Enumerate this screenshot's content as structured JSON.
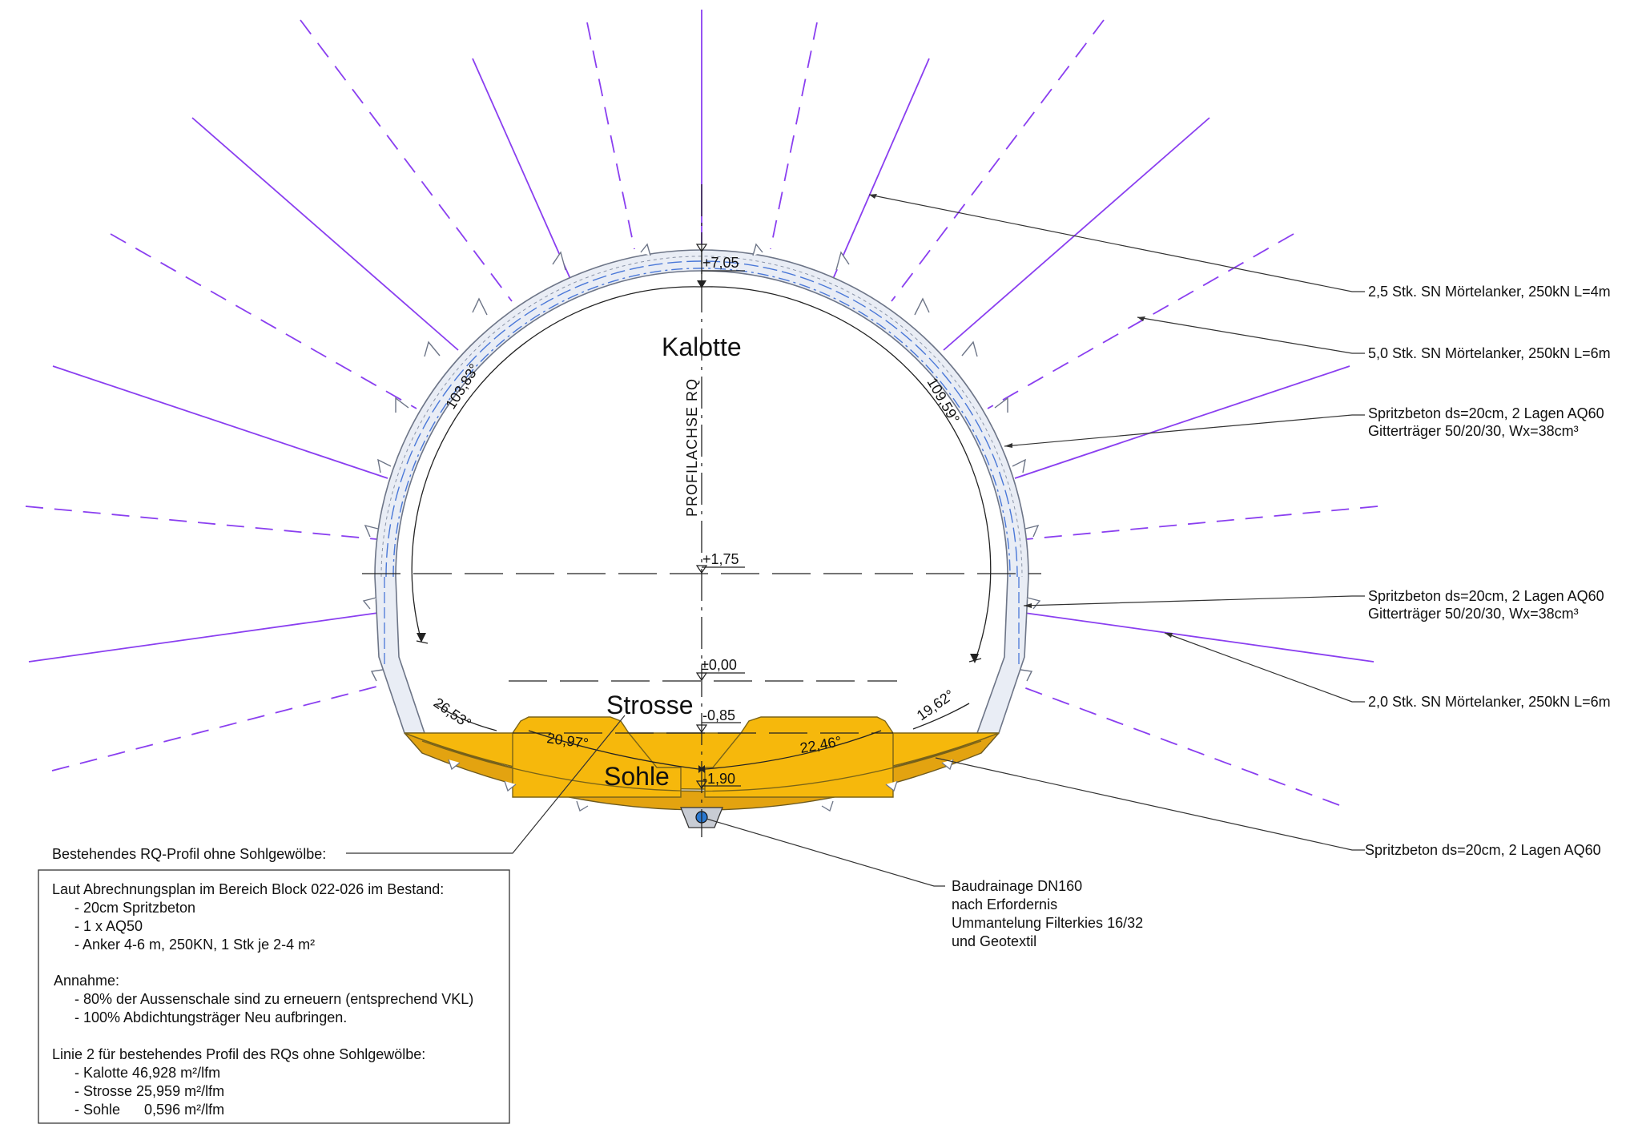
{
  "sections": {
    "kalotte": "Kalotte",
    "strosse": "Strosse",
    "sohle": "Sohle"
  },
  "axis_label": "PROFILACHSE RQ",
  "levels": {
    "top": "+7,05",
    "springline": "+1,75",
    "zero": "±0,00",
    "strosse": "-0,85",
    "sohle": "-1,90"
  },
  "angles": {
    "left_arc": "103,83°",
    "right_arc": "109,59°",
    "left_strosse": "26,53°",
    "right_strosse": "19,62°",
    "left_sohle": "20,97°",
    "right_sohle": "22,46°"
  },
  "callouts": {
    "anchor_4m": "2,5 Stk. SN Mörtelanker, 250kN L=4m",
    "anchor_6m_upper": "5,0 Stk. SN Mörtelanker, 250kN L=6m",
    "shotcrete_kalotte_1": "Spritzbeton ds=20cm, 2 Lagen AQ60",
    "shotcrete_kalotte_2": "Gitterträger 50/20/30, Wx=38cm³",
    "shotcrete_strosse_1": "Spritzbeton ds=20cm, 2 Lagen AQ60",
    "shotcrete_strosse_2": "Gitterträger 50/20/30, Wx=38cm³",
    "anchor_6m_lower": "2,0 Stk. SN Mörtelanker, 250kN L=6m",
    "shotcrete_sohle": "Spritzbeton ds=20cm, 2 Lagen AQ60",
    "existing_profile": "Bestehendes RQ-Profil ohne Sohlgewölbe:",
    "drainage": [
      "Baudrainage DN160",
      "nach Erfordernis",
      "Ummantelung Filterkies 16/32",
      "und Geotextil"
    ]
  },
  "notes": [
    "Laut Abrechnungsplan im Bereich Block 022-026 im Bestand:",
    "- 20cm Spritzbeton",
    "- 1 x AQ50",
    "- Anker 4-6 m, 250KN, 1 Stk je 2-4 m²",
    "",
    "Annahme:",
    "- 80% der Aussenschale sind zu erneuern (entsprechend VKL)",
    "- 100% Abdichtungsträger Neu aufbringen.",
    "",
    "Linie 2 für bestehendes Profil des RQs ohne Sohlgewölbe:",
    "- Kalotte  46,928 m²/lfm",
    "- Strosse 25,959 m²/lfm",
    "- Sohle      0,596 m²/lfm"
  ],
  "colors": {
    "bolt": "#8a3ff0",
    "invert_fill": "#f6b80c",
    "mesh_blue": "#4a78d8",
    "lining_grey": "#9aa3b5"
  }
}
